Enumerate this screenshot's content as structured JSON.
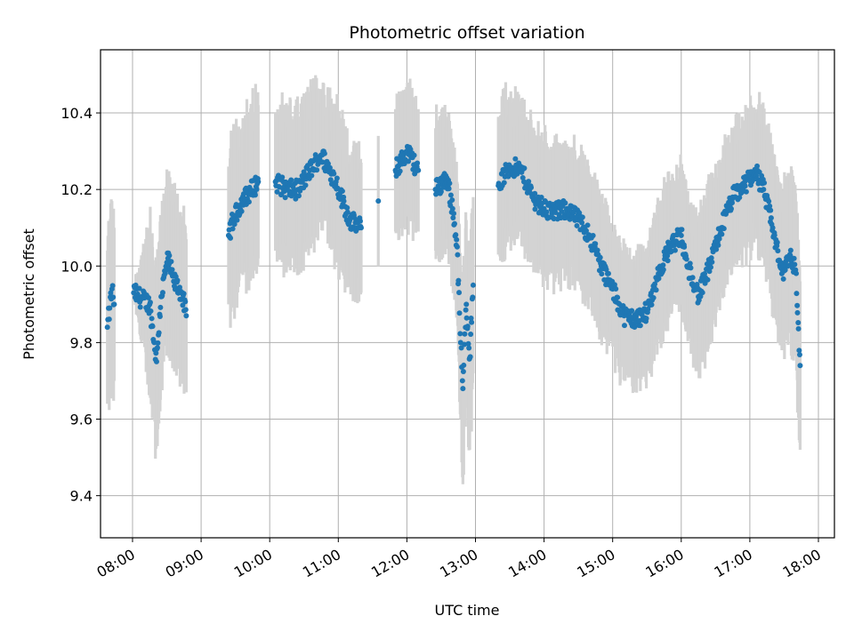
{
  "chart_data": {
    "type": "scatter",
    "title": "Photometric offset variation",
    "xlabel": "UTC time",
    "ylabel": "Photometric offset",
    "x_ticks": [
      "08:00",
      "09:00",
      "10:00",
      "11:00",
      "12:00",
      "13:00",
      "14:00",
      "15:00",
      "16:00",
      "17:00",
      "18:00"
    ],
    "y_ticks": [
      "9.4",
      "9.6",
      "9.8",
      "10.0",
      "10.2",
      "10.4"
    ],
    "xlim": [
      "07:32",
      "18:14"
    ],
    "ylim": [
      9.29,
      10.565
    ],
    "grid": true,
    "legend": "none",
    "colors": {
      "points": "#1f77b4",
      "errorbars": "#d3d3d3",
      "grid": "#b0b0b0"
    },
    "series": [
      {
        "anchors": [
          [
            "07:38",
            9.84,
            0.2
          ],
          [
            "07:40",
            9.89,
            0.22
          ],
          [
            "07:42",
            9.94,
            0.23
          ],
          [
            "07:44",
            9.9,
            0.2
          ],
          [
            "08:01",
            9.93,
            0.0
          ],
          [
            "08:15",
            9.9,
            0.2
          ],
          [
            "08:19",
            9.8,
            0.2
          ],
          [
            "08:21",
            9.75,
            0.22
          ],
          [
            "08:25",
            9.92,
            0.2
          ],
          [
            "08:31",
            10.02,
            0.2
          ],
          [
            "08:36",
            9.96,
            0.2
          ],
          [
            "08:43",
            9.93,
            0.2
          ],
          [
            "08:47",
            9.87,
            0.2
          ],
          [
            "09:24",
            10.08,
            0.18
          ],
          [
            "09:28",
            10.12,
            0.2
          ],
          [
            "09:36",
            10.17,
            0.19
          ],
          [
            "09:50",
            10.22,
            0.2
          ],
          [
            "10:05",
            10.22,
            0.18
          ],
          [
            "10:15",
            10.2,
            0.19
          ],
          [
            "10:25",
            10.2,
            0.18
          ],
          [
            "10:35",
            10.25,
            0.18
          ],
          [
            "10:45",
            10.29,
            0.17
          ],
          [
            "10:58",
            10.22,
            0.18
          ],
          [
            "11:10",
            10.12,
            0.17
          ],
          [
            "11:20",
            10.1,
            0.17
          ],
          [
            "11:35",
            10.17,
            0.17
          ],
          [
            "11:50",
            10.25,
            0.16
          ],
          [
            "12:00",
            10.3,
            0.16
          ],
          [
            "12:10",
            10.25,
            0.16
          ],
          [
            "12:25",
            10.2,
            0.16
          ],
          [
            "12:35",
            10.23,
            0.16
          ],
          [
            "12:40",
            10.15,
            0.16
          ],
          [
            "12:44",
            10.05,
            0.17
          ],
          [
            "12:47",
            9.8,
            0.2
          ],
          [
            "12:49",
            9.68,
            0.25
          ],
          [
            "12:52",
            9.9,
            0.22
          ],
          [
            "12:55",
            9.76,
            0.24
          ],
          [
            "12:58",
            9.95,
            0.23
          ],
          [
            "13:20",
            10.21,
            0.18
          ],
          [
            "13:30",
            10.26,
            0.17
          ],
          [
            "13:40",
            10.25,
            0.16
          ],
          [
            "13:50",
            10.18,
            0.16
          ],
          [
            "14:00",
            10.15,
            0.16
          ],
          [
            "14:10",
            10.14,
            0.16
          ],
          [
            "14:20",
            10.15,
            0.15
          ],
          [
            "14:30",
            10.12,
            0.16
          ],
          [
            "14:40",
            10.08,
            0.16
          ],
          [
            "14:50",
            10.0,
            0.16
          ],
          [
            "15:00",
            9.94,
            0.15
          ],
          [
            "15:10",
            9.87,
            0.15
          ],
          [
            "15:20",
            9.86,
            0.15
          ],
          [
            "15:30",
            9.88,
            0.15
          ],
          [
            "15:40",
            9.98,
            0.16
          ],
          [
            "15:50",
            10.05,
            0.16
          ],
          [
            "16:00",
            10.08,
            0.16
          ],
          [
            "16:05",
            10.0,
            0.16
          ],
          [
            "16:10",
            9.97,
            0.17
          ],
          [
            "16:15",
            9.92,
            0.18
          ],
          [
            "16:25",
            10.0,
            0.18
          ],
          [
            "16:35",
            10.1,
            0.17
          ],
          [
            "16:45",
            10.18,
            0.16
          ],
          [
            "16:55",
            10.21,
            0.16
          ],
          [
            "17:05",
            10.25,
            0.16
          ],
          [
            "17:12",
            10.2,
            0.18
          ],
          [
            "17:20",
            10.1,
            0.18
          ],
          [
            "17:28",
            9.98,
            0.2
          ],
          [
            "17:35",
            10.03,
            0.2
          ],
          [
            "17:40",
            9.99,
            0.2
          ],
          [
            "17:44",
            9.74,
            0.22
          ]
        ]
      }
    ]
  }
}
